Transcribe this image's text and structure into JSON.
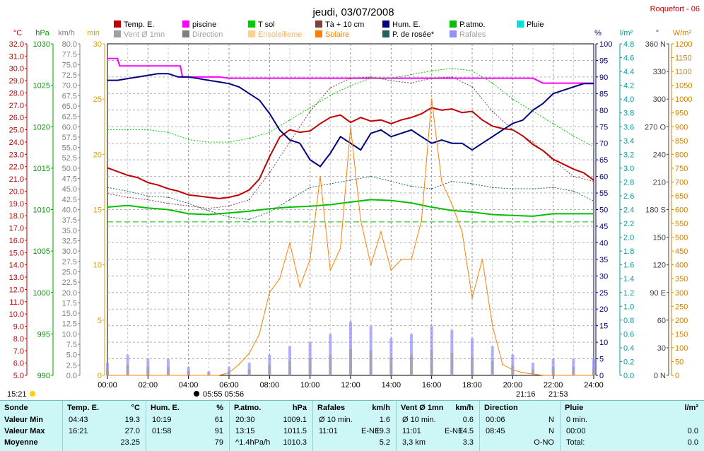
{
  "header": {
    "title": "jeudi, 03/07/2008",
    "station": "Roquefort - 06",
    "sunrise_left": "15:21",
    "sun_times": "05:55 05:56",
    "sunset_right": "21:16",
    "sunset_right2": "21:53"
  },
  "legend": [
    {
      "label": "Temp. E.",
      "color": "#c00000"
    },
    {
      "label": "piscine",
      "color": "#ff00ff"
    },
    {
      "label": "T sol",
      "color": "#00cc00"
    },
    {
      "label": "Tà + 10 cm",
      "color": "#804040"
    },
    {
      "label": "Hum. E.",
      "color": "#000080"
    },
    {
      "label": "P.atmo.",
      "color": "#00c000"
    },
    {
      "label": "Pluie",
      "color": "#00e0e0"
    },
    {
      "label": "Vent Ø 1mn",
      "color": "#a0a0a0"
    },
    {
      "label": "Direction",
      "color": "#808080"
    },
    {
      "label": "Ensoleilleme",
      "color": "#ffd090"
    },
    {
      "label": "Solaire",
      "color": "#ff8000"
    },
    {
      "label": "P. de rosée*",
      "color": "#206060"
    },
    {
      "label": "Rafales",
      "color": "#9090ff"
    }
  ],
  "axis_units": {
    "temp": "°C",
    "press": "hPa",
    "wind": "km/h",
    "min": "min",
    "hum": "%",
    "rain": "l/m²",
    "dir": "°",
    "solar": "W/m²"
  },
  "colors": {
    "temp": "#c00000",
    "press": "#00a000",
    "wind": "#808080",
    "min": "#e0a000",
    "hum": "#000080",
    "rain": "#00a0a0",
    "dir": "#404040",
    "solar": "#d08000"
  },
  "chart_data": {
    "type": "line",
    "x_ticks": [
      "00:00",
      "02:00",
      "04:00",
      "06:00",
      "08:00",
      "10:00",
      "12:00",
      "14:00",
      "16:00",
      "18:00",
      "20:00",
      "22:00",
      "24:00"
    ],
    "axes": {
      "temp_c": {
        "min": 5.0,
        "max": 32.0,
        "step": 1.0
      },
      "pressure_hpa": {
        "min": 990,
        "max": 1030,
        "step": 5
      },
      "wind_kmh": {
        "min": 0,
        "max": 80,
        "step": 2.5
      },
      "sunshine_min": {
        "min": 0,
        "max": 30,
        "step": 5
      },
      "humidity_pct": {
        "min": 0,
        "max": 100,
        "step": 5
      },
      "rain_lm2": {
        "min": 0,
        "max": 4.8,
        "step": 0.2
      },
      "direction_deg": {
        "labels": [
          "0 N",
          "30",
          "60",
          "90 E",
          "120",
          "150",
          "180 S",
          "210",
          "240",
          "270 O",
          "300",
          "330",
          "360 N"
        ]
      },
      "solar_wm2": {
        "min": 0,
        "max": 1200,
        "step": 50
      }
    },
    "series": [
      {
        "name": "Temp. E.",
        "axis": "temp_c",
        "color": "#c00000",
        "x": [
          0,
          0.5,
          1,
          1.5,
          2,
          2.5,
          3,
          3.5,
          4,
          4.5,
          5,
          5.5,
          6,
          6.5,
          7,
          7.5,
          8,
          8.5,
          9,
          9.5,
          10,
          10.5,
          11,
          11.5,
          12,
          12.5,
          13,
          13.5,
          14,
          14.5,
          15,
          15.5,
          16,
          16.5,
          17,
          17.5,
          18,
          18.5,
          19,
          19.5,
          20,
          20.5,
          21,
          21.5,
          22,
          22.5,
          23,
          23.5,
          24
        ],
        "y": [
          21.9,
          21.6,
          21.3,
          21.1,
          20.7,
          20.5,
          20.2,
          20.0,
          19.7,
          19.6,
          19.5,
          19.4,
          19.5,
          19.7,
          20.1,
          21.0,
          22.8,
          24.4,
          25.0,
          24.8,
          24.9,
          25.5,
          26.0,
          26.2,
          25.6,
          26.0,
          25.7,
          25.8,
          25.5,
          25.8,
          26.0,
          26.3,
          26.8,
          26.6,
          26.7,
          26.4,
          26.5,
          25.8,
          25.3,
          25.1,
          25.0,
          24.5,
          23.8,
          23.3,
          22.6,
          22.2,
          21.8,
          21.5,
          20.9
        ]
      },
      {
        "name": "piscine",
        "axis": "temp_c",
        "color": "#ff00ff",
        "x": [
          0,
          0.5,
          0.6,
          3.6,
          3.7,
          5.5,
          6,
          7,
          8,
          9,
          10,
          11,
          12,
          13,
          14,
          15,
          16,
          17,
          18,
          19,
          20,
          21,
          21.5,
          22,
          23,
          24
        ],
        "y": [
          30.8,
          30.8,
          30.2,
          30.2,
          29.3,
          29.3,
          29.2,
          29.2,
          29.2,
          29.2,
          29.2,
          29.2,
          29.2,
          29.2,
          29.2,
          29.2,
          29.2,
          29.2,
          29.2,
          29.2,
          29.2,
          29.2,
          28.8,
          28.8,
          28.8,
          28.8
        ]
      },
      {
        "name": "Hum. E.",
        "axis": "humidity_pct",
        "color": "#000080",
        "x": [
          0,
          0.5,
          1,
          1.5,
          2,
          2.5,
          3,
          3.5,
          4,
          4.5,
          5,
          5.5,
          6,
          6.5,
          7,
          7.5,
          8,
          8.5,
          9,
          9.5,
          10,
          10.5,
          11,
          11.5,
          12,
          12.5,
          13,
          13.5,
          14,
          14.5,
          15,
          15.5,
          16,
          16.5,
          17,
          17.5,
          18,
          18.5,
          19,
          19.5,
          20,
          20.5,
          21,
          21.5,
          22,
          22.5,
          23,
          23.5,
          24
        ],
        "y": [
          89,
          89,
          89.5,
          90,
          90.5,
          91,
          91,
          90,
          90,
          89.5,
          89,
          88.5,
          88,
          87,
          85,
          83,
          79,
          74,
          71,
          70,
          65,
          63,
          67,
          72,
          70,
          68,
          73,
          74,
          72,
          73,
          74,
          72,
          70,
          71,
          70,
          70,
          68,
          70,
          72,
          74,
          76,
          77,
          80,
          82,
          85,
          86,
          87,
          88,
          88
        ]
      },
      {
        "name": "P.atmo.",
        "axis": "pressure_hpa",
        "color": "#00c000",
        "x": [
          0,
          1,
          2,
          3,
          4,
          5,
          6,
          7,
          8,
          9,
          10,
          11,
          12,
          13,
          14,
          15,
          16,
          17,
          18,
          19,
          20,
          21,
          22,
          23,
          24
        ],
        "y": [
          1010.3,
          1010.5,
          1010.2,
          1010,
          1009.5,
          1009.4,
          1009.6,
          1009.8,
          1010.1,
          1010.3,
          1010.4,
          1010.6,
          1010.9,
          1011.2,
          1011.1,
          1010.8,
          1010.3,
          1009.9,
          1009.7,
          1009.4,
          1009.3,
          1009.2,
          1009.5,
          1009.5,
          1009.5
        ]
      },
      {
        "name": "T sol",
        "axis": "temp_c",
        "color": "#00cc00",
        "dashed": true,
        "x": [
          0,
          1,
          2,
          3,
          4,
          5,
          6,
          7,
          8,
          9,
          10,
          11,
          12,
          13,
          14,
          15,
          16,
          17,
          18,
          19,
          20,
          21,
          22,
          23,
          24
        ],
        "y": [
          25,
          25,
          25,
          24.8,
          24.2,
          24,
          24,
          24.3,
          24.8,
          25.8,
          26.8,
          27.8,
          28.6,
          29.2,
          29.2,
          29.5,
          29.8,
          30,
          29.8,
          28.8,
          27.5,
          26.5,
          25.5,
          24.5,
          23.6
        ]
      },
      {
        "name": "Tà + 10 cm",
        "axis": "temp_c",
        "color": "#804040",
        "dashed": true,
        "x": [
          0,
          1,
          2,
          3,
          4,
          5,
          6,
          7,
          8,
          9,
          10,
          11,
          12,
          13,
          14,
          15,
          16,
          17,
          18,
          19,
          20,
          21,
          22,
          23,
          24
        ],
        "y": [
          19.8,
          19.5,
          19.3,
          19.0,
          18.8,
          18.6,
          18.8,
          19.3,
          21.5,
          24,
          26.5,
          28.4,
          29.2,
          29.3,
          29.0,
          28.8,
          29.2,
          29.3,
          28.5,
          26.5,
          25.0,
          24.0,
          22.5,
          21.2,
          20.8
        ]
      },
      {
        "name": "P. de rosée*",
        "axis": "temp_c",
        "color": "#206060",
        "dashed": true,
        "x": [
          0,
          1,
          2,
          3,
          4,
          5,
          6,
          7,
          8,
          9,
          10,
          11,
          12,
          13,
          14,
          15,
          16,
          17,
          18,
          19,
          20,
          21,
          22,
          23,
          24
        ],
        "y": [
          20.3,
          20.0,
          19.6,
          19.5,
          19.0,
          18.4,
          17.9,
          17.7,
          18.3,
          19.3,
          20.3,
          20.6,
          20.9,
          21.2,
          20.8,
          20.4,
          20.2,
          20.8,
          20.6,
          20.3,
          20.2,
          20.2,
          20.3,
          20.0,
          19.2
        ]
      },
      {
        "name": "Solaire",
        "axis": "solar_wm2",
        "color": "#ff8000",
        "x": [
          0,
          5.5,
          6,
          6.5,
          7,
          7.5,
          8,
          8.5,
          9,
          9.5,
          10,
          10.5,
          11,
          11.5,
          12,
          12.5,
          13,
          13.5,
          14,
          14.5,
          15,
          15.5,
          16,
          16.5,
          17,
          17.5,
          18,
          18.5,
          19,
          19.5,
          20,
          20.5,
          21,
          21.5,
          24
        ],
        "y": [
          0,
          0,
          10,
          40,
          80,
          150,
          300,
          350,
          480,
          320,
          420,
          720,
          380,
          460,
          900,
          560,
          400,
          520,
          380,
          420,
          420,
          560,
          1000,
          700,
          620,
          520,
          280,
          420,
          180,
          40,
          20,
          10,
          5,
          0,
          0
        ]
      },
      {
        "name": "Rafales",
        "axis": "wind_kmh",
        "color": "#9090ff",
        "x": [
          0,
          1,
          2,
          3,
          4,
          5,
          6,
          7,
          8,
          9,
          10,
          11,
          12,
          13,
          14,
          15,
          16,
          17,
          18,
          19,
          20,
          21,
          22,
          23,
          24
        ],
        "y": [
          3,
          5,
          4,
          4,
          2,
          1,
          2,
          3,
          5,
          7,
          8,
          10,
          13,
          12,
          9,
          10,
          12,
          11,
          9,
          7,
          5,
          3,
          4,
          4,
          4
        ]
      },
      {
        "name": "Vent Ø 1mn",
        "axis": "wind_kmh",
        "color": "#a0a0a0",
        "x": [
          0,
          1,
          2,
          3,
          4,
          5,
          6,
          7,
          8,
          9,
          10,
          11,
          12,
          13,
          14,
          15,
          16,
          17,
          18,
          19,
          20,
          21,
          22,
          23,
          24
        ],
        "y": [
          1.5,
          2.5,
          2,
          2,
          1,
          0.5,
          1,
          1.5,
          2.5,
          3.5,
          4,
          5,
          6.5,
          6,
          4.5,
          5,
          6,
          5.5,
          4.5,
          3.5,
          2.5,
          1.5,
          2,
          2,
          2
        ]
      }
    ],
    "reference_line": {
      "value": 17.5,
      "axis": "temp_c",
      "color": "#00c000"
    }
  },
  "stats": {
    "sections": [
      {
        "title": "Sonde",
        "rows": [
          "Valeur Min",
          "Valeur Max",
          "Moyenne"
        ]
      },
      {
        "title": "Temp. E.",
        "unit": "°C",
        "rows": [
          [
            "04:43",
            "19.3"
          ],
          [
            "16:21",
            "27.0"
          ],
          [
            "",
            "23.25"
          ]
        ]
      },
      {
        "title": "Hum. E.",
        "unit": "%",
        "rows": [
          [
            "10:19",
            "61"
          ],
          [
            "01:58",
            "91"
          ],
          [
            "",
            "79"
          ]
        ]
      },
      {
        "title": "P.atmo.",
        "unit": "hPa",
        "rows": [
          [
            "20:30",
            "1009.1"
          ],
          [
            "13:15",
            "1011.5"
          ],
          [
            "^1.4hPa/h",
            "1010.3"
          ]
        ]
      },
      {
        "title": "Rafales",
        "unit": "km/h",
        "rows": [
          [
            "Ø 10 min.",
            "",
            "1.6"
          ],
          [
            "11:01",
            "E-NE",
            "19.3"
          ],
          [
            "",
            "",
            "5.2"
          ]
        ]
      },
      {
        "title": "Vent Ø 1mn",
        "unit": "km/h",
        "rows": [
          [
            "Ø 10 min.",
            "",
            "0.6"
          ],
          [
            "11:01",
            "E-NE",
            "14.5"
          ],
          [
            "3,3 km",
            "",
            "3.3"
          ]
        ]
      },
      {
        "title": "Direction",
        "unit": "",
        "rows": [
          [
            "00:06",
            "",
            "N"
          ],
          [
            "08:45",
            "",
            "N"
          ],
          [
            "",
            "",
            "O-NO"
          ]
        ]
      },
      {
        "title": "Pluie",
        "unit": "l/m²",
        "rows": [
          [
            "0 min.",
            ""
          ],
          [
            "00:00",
            "0.0"
          ],
          [
            "Total:",
            "0.0"
          ]
        ]
      }
    ]
  }
}
